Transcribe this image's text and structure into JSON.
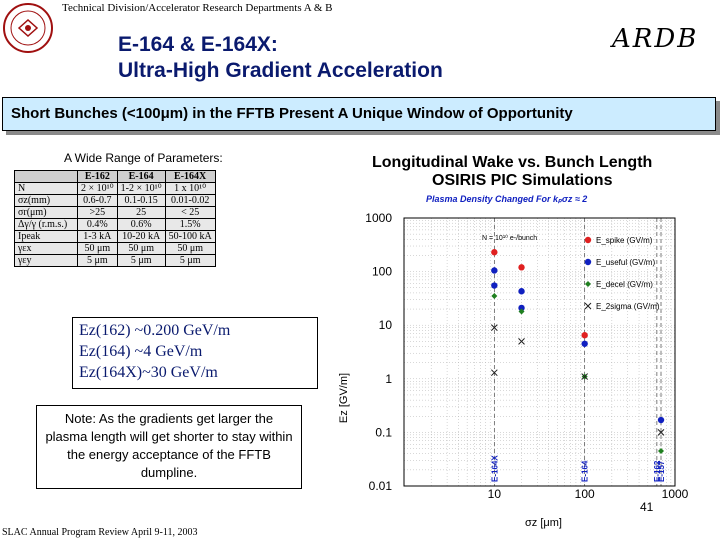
{
  "header": {
    "department": "Technical Division/Accelerator Research Departments A & B",
    "logo": "university-seal-icon"
  },
  "title": {
    "line1": "E-164 & E-164X:",
    "line2": "Ultra-High Gradient Acceleration",
    "logo_text": "ARDB"
  },
  "banner": "Short Bunches (<100μm) in the FFTB Present A Unique Window of Opportunity",
  "params": {
    "label": "A Wide Range of Parameters:",
    "columns": [
      "",
      "E-162",
      "E-164",
      "E-164X"
    ],
    "rows": [
      [
        "N",
        "2 × 10¹⁰",
        "1-2 × 10¹⁰",
        "1 x 10¹⁰"
      ],
      [
        "σz(mm)",
        "0.6-0.7",
        "0.1-0.15",
        "0.01-0.02"
      ],
      [
        "σr(μm)",
        ">25",
        "25",
        "< 25"
      ],
      [
        "Δγ/γ (r.m.s.)",
        "0.4%",
        "0.6%",
        "1.5%"
      ],
      [
        "Ipeak",
        "1-3 kA",
        "10-20 kA",
        "50-100 kA"
      ],
      [
        "γεx",
        "50 μm",
        "50 μm",
        "50 μm"
      ],
      [
        "γεy",
        "5 μm",
        "5 μm",
        "5 μm"
      ]
    ]
  },
  "ez": {
    "line1": "Ez(162)   ~0.200 GeV/m",
    "line2": "Ez(164)   ~4 GeV/m",
    "line3": "Ez(164X)~30 GeV/m"
  },
  "note": "Note: As the gradients get larger the plasma length will get shorter to stay within the energy acceptance of the FFTB dumpline.",
  "footer": "SLAC Annual Program Review April 9-11, 2003",
  "page_number": "41",
  "chart_data": {
    "type": "scatter",
    "title": "Longitudinal Wake vs. Bunch Length",
    "subtitle": "OSIRIS PIC Simulations",
    "note": "Plasma Density Changed For kₚσz ≈ 2",
    "annotation": "N = 10¹⁰ e-/bunch",
    "xlabel": "σz [μm]",
    "ylabel": "Ez [GV/m]",
    "xscale": "log",
    "yscale": "log",
    "xlim": [
      1,
      1000
    ],
    "ylim": [
      0.01,
      1000
    ],
    "xticks": [
      "10",
      "100",
      "1000"
    ],
    "yticks": [
      "0.01",
      "0.1",
      "1",
      "10",
      "100",
      "1000"
    ],
    "grid": true,
    "legend_position": "top-right",
    "vertical_lines": [
      {
        "x": 10,
        "label": "E-164X"
      },
      {
        "x": 100,
        "label": "E-164"
      },
      {
        "x": 630,
        "label": "E-162"
      },
      {
        "x": 700,
        "label": "E-157"
      }
    ],
    "series": [
      {
        "name": "E_spike (GV/m)",
        "color": "#e02020",
        "marker": "circle",
        "points": [
          [
            10,
            230
          ],
          [
            20,
            120
          ],
          [
            100,
            6.5
          ]
        ]
      },
      {
        "name": "E_useful (GV/m)",
        "color": "#1020c0",
        "marker": "circle",
        "points": [
          [
            10,
            105
          ],
          [
            10,
            55
          ],
          [
            20,
            43
          ],
          [
            20,
            21
          ],
          [
            100,
            4.5
          ],
          [
            700,
            0.17
          ]
        ]
      },
      {
        "name": "E_decel (GV/m)",
        "color": "#208020",
        "marker": "diamond",
        "points": [
          [
            10,
            35
          ],
          [
            20,
            18
          ],
          [
            100,
            1.1
          ],
          [
            700,
            0.045
          ]
        ]
      },
      {
        "name": "E_2sigma (GV/m)",
        "color": "#202020",
        "marker": "x",
        "points": [
          [
            10,
            9
          ],
          [
            10,
            1.3
          ],
          [
            20,
            5
          ],
          [
            100,
            1.1
          ],
          [
            700,
            0.1
          ]
        ]
      }
    ]
  }
}
